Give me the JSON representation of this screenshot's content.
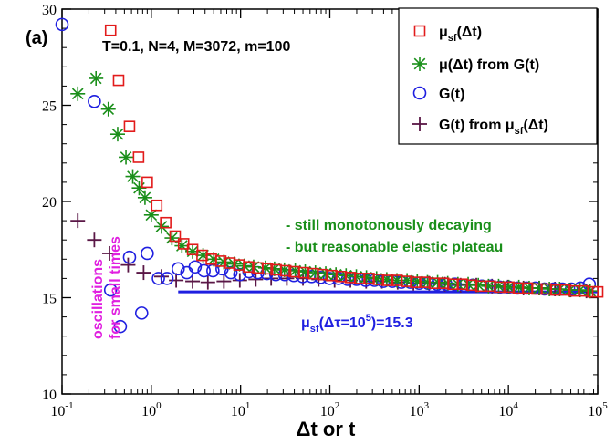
{
  "panel_label": "(a)",
  "title": "T=0.1, N=4, M=3072, m=100",
  "colors": {
    "mu_sf": "#e21b1b",
    "mu_from_G": "#1a8f1a",
    "G": "#1f1fe0",
    "G_from_mu": "#5a1746",
    "plateau": "#1f1fe0",
    "annotation_green": "#1a8f1a",
    "annotation_magenta": "#e020e0"
  },
  "legend": {
    "placement": "top-right",
    "entries": [
      {
        "id": "mu_sf",
        "marker": "square",
        "text": "μ",
        "sub": "sf",
        "suffix": "(Δt)"
      },
      {
        "id": "mu_from_G",
        "marker": "asterisk",
        "text": "μ(Δt) from G(t)",
        "sub": "",
        "suffix": ""
      },
      {
        "id": "G",
        "marker": "circle",
        "text": "G(t)",
        "sub": "",
        "suffix": ""
      },
      {
        "id": "G_from_mu",
        "marker": "plus",
        "text": "G(t) from μ",
        "sub": "sf",
        "suffix": "(Δt)"
      }
    ]
  },
  "annotations": {
    "green_line1": "- still monotonously decaying",
    "green_line2": "- but reasonable elastic plateau",
    "plateau_pre": "μ",
    "plateau_sub": "sf",
    "plateau_mid": "(Δτ=10",
    "plateau_sup": "5",
    "plateau_post": ")=15.3",
    "magenta_line1": "oscillations",
    "magenta_line2": "for small times"
  },
  "chart_data": {
    "type": "scatter",
    "xscale": "log",
    "xlim": [
      0.1,
      100000
    ],
    "ylim": [
      10,
      30
    ],
    "xlabel": "Δt or t",
    "ylabel": "",
    "x_tick_labels": [
      {
        "base": "10",
        "exp": "-1"
      },
      {
        "base": "10",
        "exp": "0"
      },
      {
        "base": "10",
        "exp": "1"
      },
      {
        "base": "10",
        "exp": "2"
      },
      {
        "base": "10",
        "exp": "3"
      },
      {
        "base": "10",
        "exp": "4"
      },
      {
        "base": "10",
        "exp": "5"
      }
    ],
    "y_ticks": [
      10,
      15,
      20,
      25,
      30
    ],
    "plateau": {
      "x_from": 2,
      "x_to": 100000,
      "y": 15.3
    },
    "series": [
      {
        "id": "mu_sf",
        "name": "μsf(Δt)",
        "x": [
          0.35,
          0.43,
          0.57,
          0.72,
          0.9,
          1.15,
          1.45,
          1.85,
          2.3,
          2.9,
          3.7,
          4.7,
          6,
          7.6,
          9.6,
          12.3,
          15.6,
          20,
          25,
          32,
          40,
          51,
          65,
          83,
          105,
          134,
          170,
          216,
          275,
          350,
          445,
          565,
          720,
          915,
          1160,
          1480,
          1880,
          2400,
          3050,
          3880,
          4930,
          6270,
          7980,
          10150,
          12900,
          16400,
          20900,
          26600,
          33800,
          43000,
          54700,
          69500,
          88400,
          100000
        ],
        "values": [
          28.9,
          26.3,
          23.9,
          22.3,
          21.0,
          19.8,
          18.9,
          18.2,
          17.8,
          17.5,
          17.2,
          17.0,
          16.9,
          16.8,
          16.7,
          16.6,
          16.55,
          16.5,
          16.45,
          16.4,
          16.35,
          16.3,
          16.25,
          16.2,
          16.15,
          16.1,
          16.05,
          16.0,
          16.0,
          15.95,
          15.9,
          15.9,
          15.85,
          15.8,
          15.8,
          15.75,
          15.75,
          15.7,
          15.7,
          15.65,
          15.6,
          15.6,
          15.55,
          15.55,
          15.5,
          15.5,
          15.45,
          15.45,
          15.4,
          15.4,
          15.35,
          15.35,
          15.3,
          15.3
        ]
      },
      {
        "id": "mu_from_G",
        "name": "μ(Δt) from G(t)",
        "x": [
          0.15,
          0.24,
          0.33,
          0.42,
          0.52,
          0.62,
          0.73,
          0.85,
          1.0,
          1.3,
          1.7,
          2.2,
          2.9,
          3.8,
          5,
          6.5,
          8.5,
          11,
          14,
          19,
          24,
          31,
          41,
          53,
          69,
          90,
          117,
          152,
          198,
          257,
          334,
          434,
          564,
          733,
          953,
          1240,
          1610,
          2090,
          2720,
          3540,
          4600,
          5980,
          7770,
          10100,
          13100,
          17100,
          22200,
          28800,
          37500,
          48700,
          63400,
          82400
        ],
        "values": [
          25.6,
          26.4,
          24.8,
          23.5,
          22.3,
          21.3,
          20.7,
          20.2,
          19.3,
          18.7,
          18.1,
          17.7,
          17.4,
          17.2,
          17.0,
          16.85,
          16.75,
          16.65,
          16.6,
          16.55,
          16.5,
          16.45,
          16.4,
          16.35,
          16.3,
          16.25,
          16.2,
          16.15,
          16.1,
          16.05,
          16.0,
          15.95,
          15.9,
          15.9,
          15.85,
          15.8,
          15.8,
          15.75,
          15.7,
          15.7,
          15.65,
          15.6,
          15.6,
          15.55,
          15.55,
          15.5,
          15.5,
          15.45,
          15.45,
          15.4,
          15.4,
          15.35
        ]
      },
      {
        "id": "G",
        "name": "G(t)",
        "x": [
          0.1,
          0.23,
          0.35,
          0.45,
          0.57,
          0.78,
          0.9,
          1.2,
          1.5,
          2.0,
          2.5,
          3.1,
          3.9,
          4.9,
          6.2,
          7.8,
          9.8,
          12.4,
          15.6,
          19.7,
          24.8,
          31.2,
          39.4,
          49.6,
          62.5,
          78.8,
          99.3,
          125,
          158,
          199,
          251,
          316,
          398,
          501,
          632,
          796,
          1000,
          1260,
          1590,
          2000,
          2520,
          3180,
          4000,
          5040,
          6350,
          8000,
          10080,
          12700,
          16000,
          20160,
          25400,
          32000,
          40300,
          50800,
          64000,
          80600
        ],
        "values": [
          29.2,
          25.2,
          15.4,
          13.5,
          17.1,
          14.2,
          17.3,
          16.0,
          16.0,
          16.5,
          16.3,
          16.6,
          16.4,
          16.4,
          16.5,
          16.3,
          16.2,
          16.35,
          16.3,
          16.25,
          16.2,
          16.2,
          16.15,
          16.1,
          16.1,
          16.05,
          16.0,
          16.0,
          15.95,
          15.95,
          15.9,
          15.9,
          15.85,
          15.85,
          15.8,
          15.8,
          15.75,
          15.75,
          15.7,
          15.7,
          15.7,
          15.65,
          15.65,
          15.6,
          15.6,
          15.55,
          15.55,
          15.5,
          15.5,
          15.5,
          15.45,
          15.45,
          15.45,
          15.45,
          15.5,
          15.7
        ]
      },
      {
        "id": "G_from_mu",
        "name": "G(t) from μsf(Δt)",
        "x": [
          0.15,
          0.23,
          0.34,
          0.55,
          0.82,
          1.3,
          1.9,
          2.9,
          4.3,
          6.5,
          9.8,
          14.8,
          22,
          33,
          50,
          75,
          113,
          170,
          255,
          383,
          575,
          863,
          1295,
          1943,
          2915,
          4373,
          6560,
          9840,
          14760,
          22140,
          33210,
          49815,
          74720
        ],
        "values": [
          19.0,
          18.0,
          17.3,
          16.7,
          16.3,
          16.1,
          15.9,
          15.85,
          15.8,
          15.85,
          15.9,
          15.95,
          16.0,
          16.0,
          16.0,
          15.95,
          15.9,
          15.9,
          15.85,
          15.85,
          15.8,
          15.75,
          15.75,
          15.7,
          15.65,
          15.65,
          15.6,
          15.55,
          15.5,
          15.5,
          15.45,
          15.4,
          15.35
        ]
      }
    ]
  }
}
